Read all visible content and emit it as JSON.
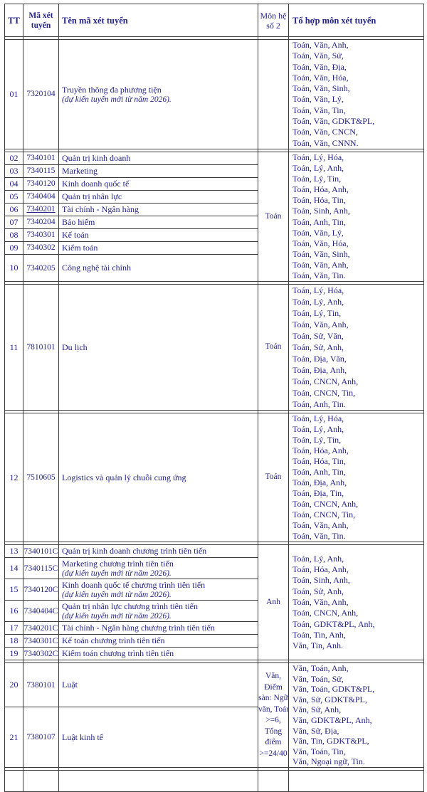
{
  "colors": {
    "ink": "#232289",
    "border": "#3d3d3d",
    "background": "#ffffff"
  },
  "table": {
    "columns": [
      {
        "label": "TT"
      },
      {
        "label": "Mã xét tuyển"
      },
      {
        "label": "Tên mã xét tuyển"
      },
      {
        "label": "Môn hệ số 2"
      },
      {
        "label": "Tổ hợp môn xét tuyển"
      }
    ],
    "groups": [
      {
        "mon_lines": [],
        "tohop_lines": [
          "Toán, Văn, Anh,",
          "Toán, Văn, Sử,",
          "Toán, Văn, Địa,",
          "Toán, Văn, Hóa,",
          "Toán, Văn, Sinh,",
          "Toán, Văn, Lý,",
          "Toán, Văn, Tin,",
          "Toán, Văn, GDKT&PL,",
          "Toán, Văn, CNCN,",
          "Toán, Văn, CNNN."
        ],
        "rows": [
          {
            "tt": "01",
            "code": "7320104",
            "name": "Truyền thông đa phương tiện",
            "note": "(dự kiến tuyển mới từ năm 2026)."
          }
        ]
      },
      {
        "mon_lines": [
          "Toán"
        ],
        "tohop_lines": [
          "Toán, Lý, Hóa,",
          "Toán, Lý, Anh,",
          "Toán, Lý, Tin,",
          "Toán, Hóa, Anh,",
          "Toán, Hóa, Tin,",
          "Toán, Sinh, Anh,",
          "Toán, Anh, Tin,",
          "Toán, Văn, Lý,",
          "Toán, Văn, Hóa,",
          "Toán, Văn, Sinh,",
          "Toán, Văn, Anh,",
          "Toán, Văn, Tin."
        ],
        "rows": [
          {
            "tt": "02",
            "code": "7340101",
            "name": "Quản trị kinh doanh"
          },
          {
            "tt": "03",
            "code": "7340115",
            "name": "Marketing"
          },
          {
            "tt": "04",
            "code": "7340120",
            "name": "Kinh doanh quốc tế"
          },
          {
            "tt": "05",
            "code": "7340404",
            "name": "Quản trị nhân lực"
          },
          {
            "tt": "06",
            "code": "7340201",
            "name": "Tài chính - Ngân hàng",
            "code_underlined": true
          },
          {
            "tt": "07",
            "code": "7340204",
            "name": "Bảo hiểm"
          },
          {
            "tt": "08",
            "code": "7340301",
            "name": "Kế toán"
          },
          {
            "tt": "09",
            "code": "7340302",
            "name": "Kiểm toán"
          },
          {
            "tt": "10",
            "code": "7340205",
            "name": "Công nghệ tài chính"
          }
        ]
      },
      {
        "mon_lines": [
          "Toán"
        ],
        "tohop_lines": [
          "Toán, Lý, Hóa,",
          "Toán, Lý, Anh,",
          "Toán, Lý, Tin,",
          "Toán, Văn, Anh,",
          "Toán, Sử, Văn,",
          "Toán, Sử, Anh,",
          "Toán, Địa, Văn,",
          "Toán, Địa, Anh,",
          "Toán, CNCN, Anh,",
          "Toán, CNCN, Tin,",
          "Toán, Anh, Tin."
        ],
        "rows": [
          {
            "tt": "11",
            "code": "7810101",
            "name": "Du lịch"
          }
        ]
      },
      {
        "mon_lines": [
          "Toán"
        ],
        "tohop_lines": [
          "Toán, Lý, Hóa,",
          "Toán, Lý, Anh,",
          "Toán, Lý, Tin,",
          "Toán, Hóa, Anh,",
          "Toán, Hóa, Tin,",
          "Toán, Anh, Tin,",
          "Toán, Địa, Anh,",
          "Toán, Địa, Tin,",
          "Toán, CNCN, Anh,",
          "Toán, CNCN, Tin,",
          "Toán, Văn, Anh,",
          "Toán, Văn, Tin."
        ],
        "rows": [
          {
            "tt": "12",
            "code": "7510605",
            "name": "Logistics và quản lý chuỗi cung ứng"
          }
        ]
      },
      {
        "mon_lines": [
          "Anh"
        ],
        "tohop_lines": [
          "Toán, Lý, Anh,",
          "Toán, Hóa, Anh,",
          "Toán, Sinh, Anh,",
          "Toán, Sử, Anh,",
          "Toán, Văn, Anh,",
          "Toán, CNCN, Anh,",
          "Toán, GDKT&PL, Anh,",
          "Toán, Tin, Anh,",
          "Văn, Tin, Anh."
        ],
        "rows": [
          {
            "tt": "13",
            "code": "7340101C",
            "name": "Quản trị kinh doanh chương trình tiên tiến"
          },
          {
            "tt": "14",
            "code": "7340115C",
            "name": "Marketing chương trình tiên tiến",
            "note": "(dự kiến tuyển mới từ năm 2026)."
          },
          {
            "tt": "15",
            "code": "7340120C",
            "name": "Kinh doanh quốc tế chương trình tiên tiến",
            "note": "(dự kiến tuyển mới từ năm 2026)."
          },
          {
            "tt": "16",
            "code": "7340404C",
            "name": "Quản trị nhân lực chương trình tiên tiến",
            "note": "(dự kiến tuyển mới từ năm 2026)."
          },
          {
            "tt": "17",
            "code": "7340201C",
            "name": "Tài chính - Ngân hàng chương trình tiên tiến"
          },
          {
            "tt": "18",
            "code": "7340301C",
            "name": "Kế toán chương trình tiên tiến"
          },
          {
            "tt": "19",
            "code": "7340302C",
            "name": "Kiểm toán chương trình tiên tiến"
          }
        ]
      },
      {
        "mon_lines": [
          "Văn,",
          "Điểm",
          "sàn: Ngữ",
          "văn, Toán",
          ">=6,",
          "Tổng",
          "điểm",
          ">=24/40"
        ],
        "tohop_lines": [
          "Văn, Toán, Anh,",
          "Văn, Toán, Sử,",
          "Văn, Toán, GDKT&PL,",
          "Văn, Sử, GDKT&PL,",
          "Văn, Sử, Anh,",
          "Văn, GDKT&PL, Anh,",
          "Văn, Sử, Địa,",
          "Văn, Tin, GDKT&PL,",
          "Văn, Toán, Tin,",
          "Văn, Ngoại ngữ, Tin."
        ],
        "rows": [
          {
            "tt": "20",
            "code": "7380101",
            "name": "Luật"
          },
          {
            "tt": "21",
            "code": "7380107",
            "name": "Luật kinh tế"
          }
        ]
      }
    ]
  }
}
